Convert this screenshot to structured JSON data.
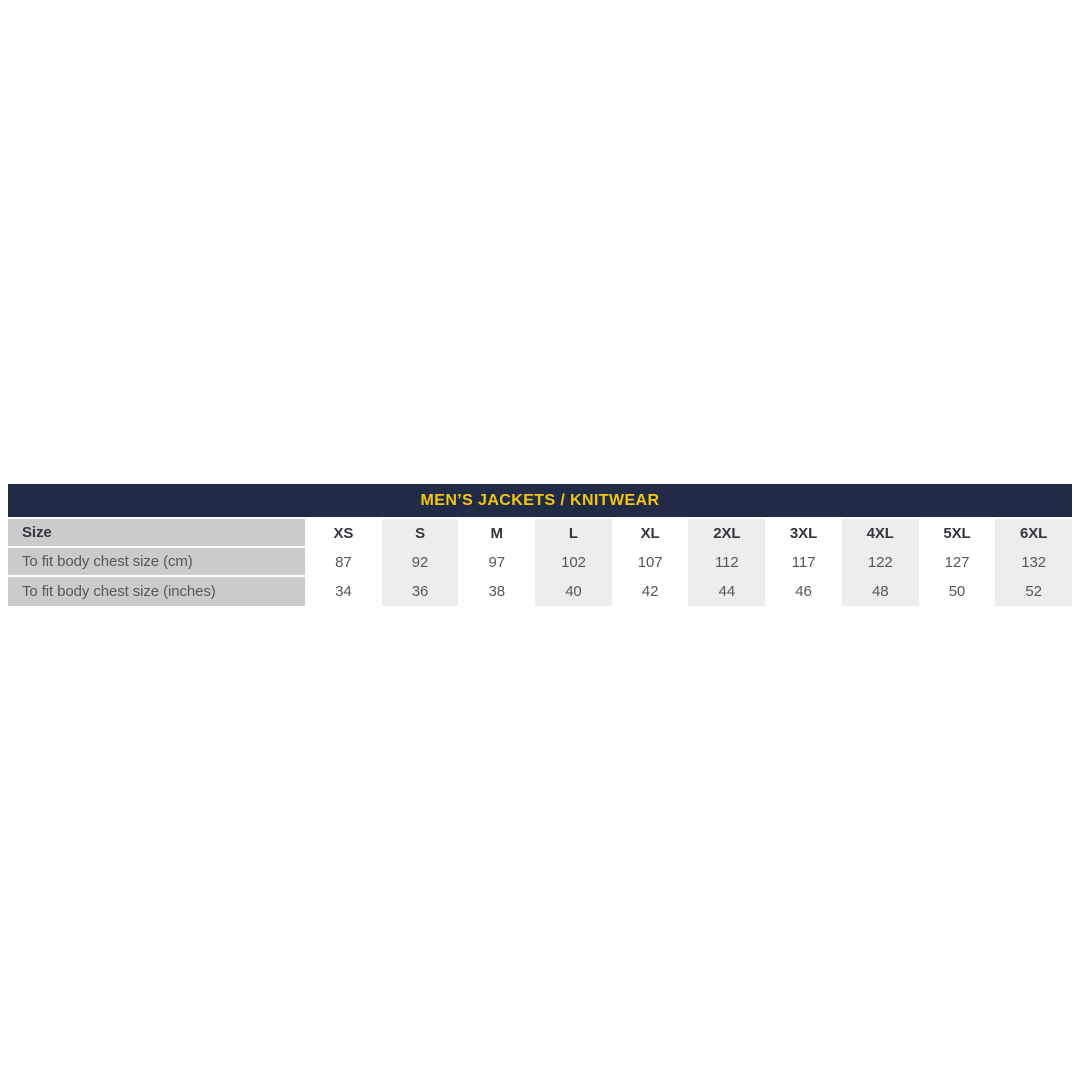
{
  "title": "MEN’S JACKETS / KNITWEAR",
  "colors": {
    "header_bg": "#222b45",
    "title_text": "#f2c611",
    "label_column_bg": "#cbcbcb",
    "stripe_column_bg": "#ededed",
    "value_text": "#55575b",
    "header_text": "#34373f"
  },
  "chart_data": {
    "type": "table",
    "title": "MEN’S JACKETS / KNITWEAR",
    "columns": [
      "Size",
      "XS",
      "S",
      "M",
      "L",
      "XL",
      "2XL",
      "3XL",
      "4XL",
      "5XL",
      "6XL"
    ],
    "rows": [
      {
        "label": "To fit body chest size (cm)",
        "values": [
          "87",
          "92",
          "97",
          "102",
          "107",
          "112",
          "117",
          "122",
          "127",
          "132"
        ]
      },
      {
        "label": "To fit body chest size (inches)",
        "values": [
          "34",
          "36",
          "38",
          "40",
          "42",
          "44",
          "46",
          "48",
          "50",
          "52"
        ]
      }
    ],
    "layout_hints": {
      "striped_columns": [
        "S",
        "L",
        "2XL",
        "4XL",
        "6XL"
      ],
      "label_column_has_row_separators": true,
      "grid": "off"
    }
  }
}
